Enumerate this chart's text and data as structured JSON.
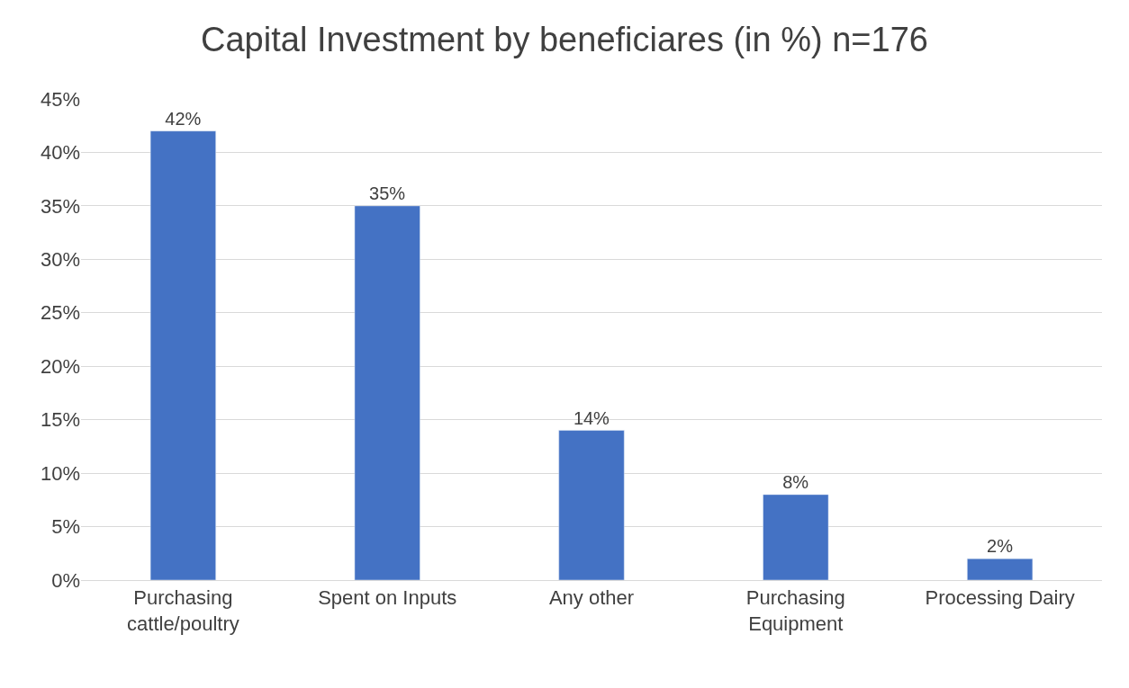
{
  "chart_data": {
    "type": "bar",
    "title": "Capital Investment by beneficiares (in %) n=176",
    "categories": [
      "Purchasing cattle/poultry",
      "Spent on Inputs",
      "Any other",
      "Purchasing Equipment",
      "Processing Dairy"
    ],
    "values": [
      42,
      35,
      14,
      8,
      2
    ],
    "value_labels": [
      "42%",
      "35%",
      "14%",
      "8%",
      "2%"
    ],
    "color": "#4472c4",
    "ylim": [
      0,
      45
    ],
    "yticks": [
      {
        "value": 0,
        "label": "0%"
      },
      {
        "value": 5,
        "label": "5%"
      },
      {
        "value": 10,
        "label": "10%"
      },
      {
        "value": 15,
        "label": "15%"
      },
      {
        "value": 20,
        "label": "20%"
      },
      {
        "value": 25,
        "label": "25%"
      },
      {
        "value": 30,
        "label": "30%"
      },
      {
        "value": 35,
        "label": "35%"
      },
      {
        "value": 40,
        "label": "40%"
      },
      {
        "value": 45,
        "label": "45%"
      }
    ],
    "grid": "y"
  }
}
